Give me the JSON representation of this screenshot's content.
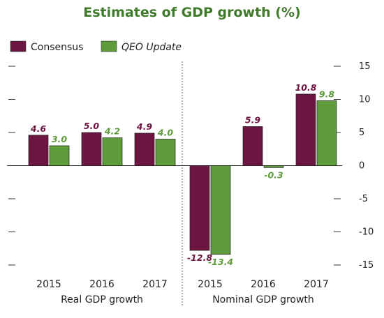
{
  "chart_data": {
    "type": "bar",
    "title": "Estimates of GDP growth (%)",
    "series": [
      {
        "name": "Consensus",
        "color": "#6d1541"
      },
      {
        "name": "QEO Update",
        "color": "#5e9b3b"
      }
    ],
    "groups": [
      {
        "label": "Real GDP growth",
        "categories": [
          "2015",
          "2016",
          "2017"
        ],
        "values": {
          "Consensus": [
            4.6,
            5.0,
            4.9
          ],
          "QEO Update": [
            3.0,
            4.2,
            4.0
          ]
        },
        "labels": {
          "Consensus": [
            "4.6",
            "5.0",
            "4.9"
          ],
          "QEO Update": [
            "3.0",
            "4.2",
            "4.0"
          ]
        }
      },
      {
        "label": "Nominal GDP growth",
        "categories": [
          "2015",
          "2016",
          "2017"
        ],
        "values": {
          "Consensus": [
            -12.8,
            5.9,
            10.8
          ],
          "QEO Update": [
            -13.4,
            -0.3,
            9.8
          ]
        },
        "labels": {
          "Consensus": [
            "-12.8",
            "5.9",
            "10.8"
          ],
          "QEO Update": [
            "-13.4",
            "-0.3",
            "9.8"
          ]
        }
      }
    ],
    "ylim": [
      -15,
      15
    ],
    "yticks": [
      15,
      10,
      5,
      0,
      -5,
      -10,
      -15
    ],
    "ytick_labels": [
      "15",
      "10",
      "5",
      "0",
      "-5",
      "-10",
      "-15"
    ],
    "title_color": "#3f7a2a",
    "legend_position": "top-left",
    "grid": false
  }
}
